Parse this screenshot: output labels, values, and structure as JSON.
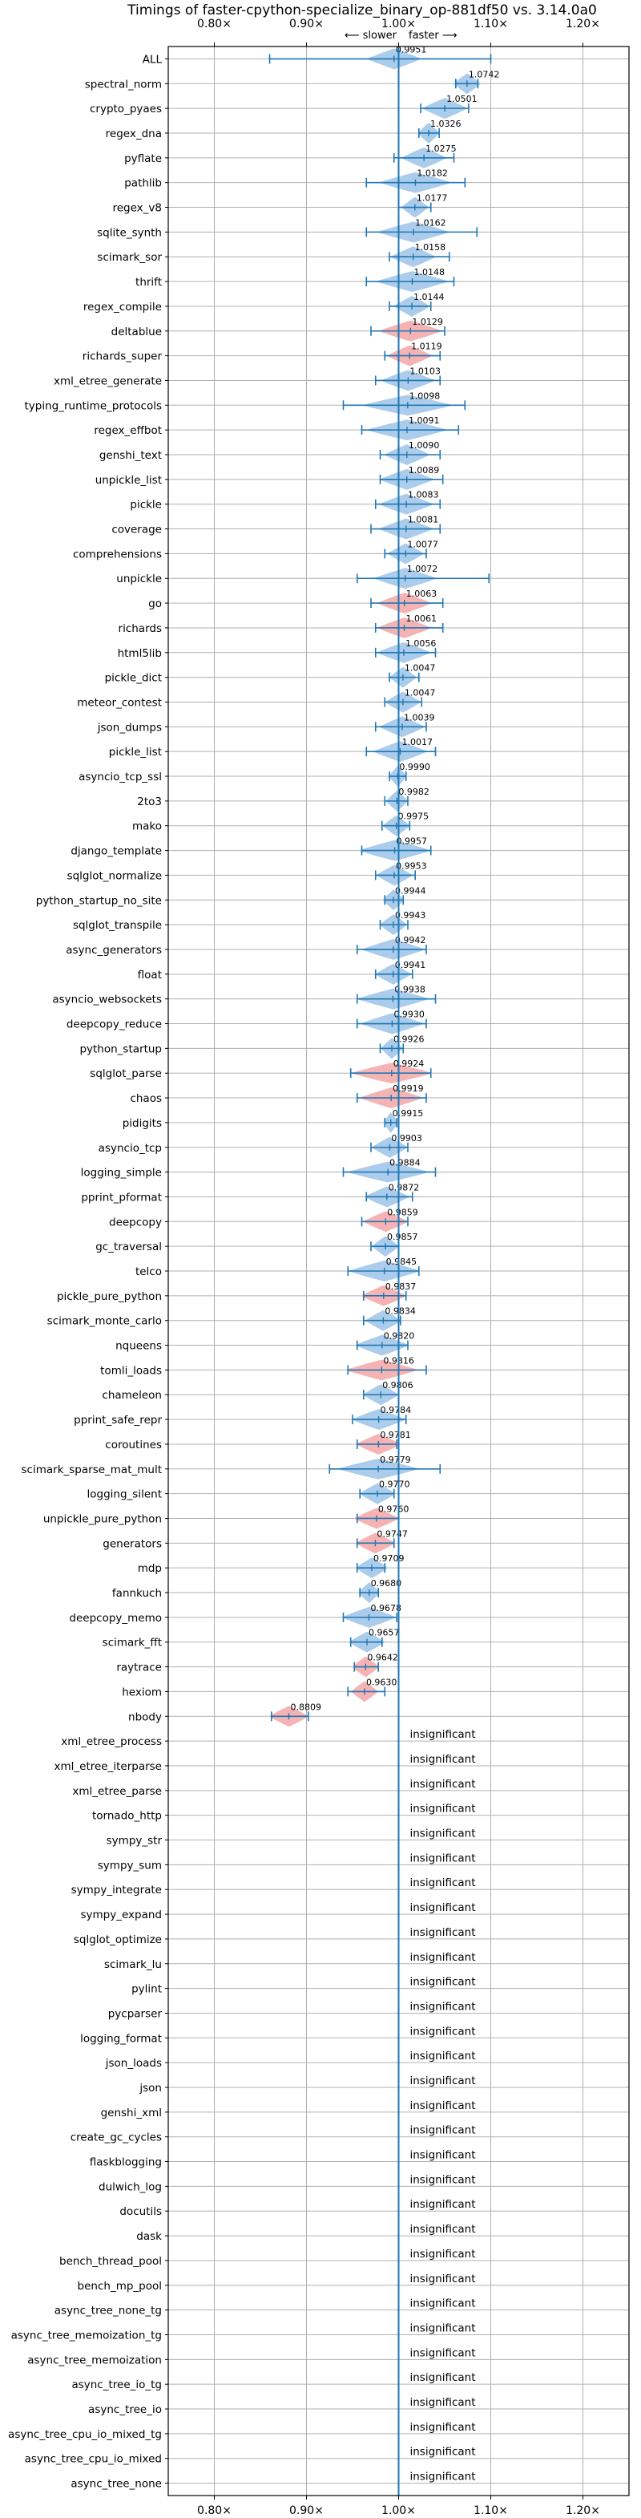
{
  "chart_data": {
    "type": "violin",
    "title": "Timings of faster-cpython-specialize_binary_op-881df50 vs. 3.14.0a0",
    "direction_labels": {
      "slower": "⟵ slower",
      "faster": "faster ⟶"
    },
    "xlim": [
      0.75,
      1.25
    ],
    "x_ticks": [
      0.8,
      0.9,
      1.0,
      1.1,
      1.2
    ],
    "x_tick_labels": [
      "0.80×",
      "0.90×",
      "1.00×",
      "1.10×",
      "1.20×"
    ],
    "reference_line": 1.0,
    "insignificant_label": "insignificant",
    "colors": {
      "faster": "#9cc3e6",
      "slower": "#f4a6a6",
      "errorbar": "#1f77b4",
      "reference": "#1f77b4"
    },
    "benchmarks": [
      {
        "name": "ALL",
        "value": 0.9951,
        "value_label": "0.9951",
        "err": [
          0.86,
          1.1
        ],
        "width": 0.03,
        "status": "faster"
      },
      {
        "name": "spectral_norm",
        "value": 1.0742,
        "value_label": "1.0742",
        "err": [
          1.062,
          1.086
        ],
        "width": 0.015,
        "status": "faster"
      },
      {
        "name": "crypto_pyaes",
        "value": 1.0501,
        "value_label": "1.0501",
        "err": [
          1.024,
          1.076
        ],
        "width": 0.025,
        "status": "faster"
      },
      {
        "name": "regex_dna",
        "value": 1.0326,
        "value_label": "1.0326",
        "err": [
          1.022,
          1.044
        ],
        "width": 0.012,
        "status": "faster"
      },
      {
        "name": "pyflate",
        "value": 1.0275,
        "value_label": "1.0275",
        "err": [
          0.995,
          1.06
        ],
        "width": 0.025,
        "status": "faster"
      },
      {
        "name": "pathlib",
        "value": 1.0182,
        "value_label": "1.0182",
        "err": [
          0.965,
          1.072
        ],
        "width": 0.04,
        "status": "faster"
      },
      {
        "name": "regex_v8",
        "value": 1.0177,
        "value_label": "1.0177",
        "err": [
          1.0,
          1.035
        ],
        "width": 0.015,
        "status": "faster"
      },
      {
        "name": "sqlite_synth",
        "value": 1.0162,
        "value_label": "1.0162",
        "err": [
          0.965,
          1.085
        ],
        "width": 0.04,
        "status": "faster"
      },
      {
        "name": "scimark_sor",
        "value": 1.0158,
        "value_label": "1.0158",
        "err": [
          0.99,
          1.055
        ],
        "width": 0.025,
        "status": "faster"
      },
      {
        "name": "thrift",
        "value": 1.0148,
        "value_label": "1.0148",
        "err": [
          0.965,
          1.06
        ],
        "width": 0.04,
        "status": "faster"
      },
      {
        "name": "regex_compile",
        "value": 1.0144,
        "value_label": "1.0144",
        "err": [
          0.99,
          1.035
        ],
        "width": 0.02,
        "status": "faster"
      },
      {
        "name": "deltablue",
        "value": 1.0129,
        "value_label": "1.0129",
        "err": [
          0.97,
          1.05
        ],
        "width": 0.035,
        "status": "slower"
      },
      {
        "name": "richards_super",
        "value": 1.0119,
        "value_label": "1.0119",
        "err": [
          0.985,
          1.045
        ],
        "width": 0.025,
        "status": "slower"
      },
      {
        "name": "xml_etree_generate",
        "value": 1.0103,
        "value_label": "1.0103",
        "err": [
          0.975,
          1.045
        ],
        "width": 0.03,
        "status": "faster"
      },
      {
        "name": "typing_runtime_protocols",
        "value": 1.0098,
        "value_label": "1.0098",
        "err": [
          0.94,
          1.072
        ],
        "width": 0.05,
        "status": "faster"
      },
      {
        "name": "regex_effbot",
        "value": 1.0091,
        "value_label": "1.0091",
        "err": [
          0.96,
          1.065
        ],
        "width": 0.045,
        "status": "faster"
      },
      {
        "name": "genshi_text",
        "value": 1.009,
        "value_label": "1.0090",
        "err": [
          0.98,
          1.045
        ],
        "width": 0.025,
        "status": "faster"
      },
      {
        "name": "unpickle_list",
        "value": 1.0089,
        "value_label": "1.0089",
        "err": [
          0.98,
          1.048
        ],
        "width": 0.03,
        "status": "faster"
      },
      {
        "name": "pickle",
        "value": 1.0083,
        "value_label": "1.0083",
        "err": [
          0.975,
          1.045
        ],
        "width": 0.03,
        "status": "faster"
      },
      {
        "name": "coverage",
        "value": 1.0081,
        "value_label": "1.0081",
        "err": [
          0.97,
          1.045
        ],
        "width": 0.03,
        "status": "faster"
      },
      {
        "name": "comprehensions",
        "value": 1.0077,
        "value_label": "1.0077",
        "err": [
          0.985,
          1.03
        ],
        "width": 0.02,
        "status": "faster"
      },
      {
        "name": "unpickle",
        "value": 1.0072,
        "value_label": "1.0072",
        "err": [
          0.955,
          1.098
        ],
        "width": 0.035,
        "status": "faster"
      },
      {
        "name": "go",
        "value": 1.0063,
        "value_label": "1.0063",
        "err": [
          0.97,
          1.048
        ],
        "width": 0.03,
        "status": "slower"
      },
      {
        "name": "richards",
        "value": 1.0061,
        "value_label": "1.0061",
        "err": [
          0.975,
          1.048
        ],
        "width": 0.03,
        "status": "slower"
      },
      {
        "name": "html5lib",
        "value": 1.0056,
        "value_label": "1.0056",
        "err": [
          0.975,
          1.04
        ],
        "width": 0.03,
        "status": "faster"
      },
      {
        "name": "pickle_dict",
        "value": 1.0047,
        "value_label": "1.0047",
        "err": [
          0.99,
          1.022
        ],
        "width": 0.015,
        "status": "faster"
      },
      {
        "name": "meteor_contest",
        "value": 1.0047,
        "value_label": "1.0047",
        "err": [
          0.985,
          1.025
        ],
        "width": 0.02,
        "status": "faster"
      },
      {
        "name": "json_dumps",
        "value": 1.0039,
        "value_label": "1.0039",
        "err": [
          0.975,
          1.03
        ],
        "width": 0.025,
        "status": "faster"
      },
      {
        "name": "pickle_list",
        "value": 1.0017,
        "value_label": "1.0017",
        "err": [
          0.965,
          1.04
        ],
        "width": 0.03,
        "status": "faster"
      },
      {
        "name": "asyncio_tcp_ssl",
        "value": 0.999,
        "value_label": "0.9990",
        "err": [
          0.99,
          1.008
        ],
        "width": 0.01,
        "status": "faster"
      },
      {
        "name": "2to3",
        "value": 0.9982,
        "value_label": "0.9982",
        "err": [
          0.985,
          1.01
        ],
        "width": 0.012,
        "status": "faster"
      },
      {
        "name": "mako",
        "value": 0.9975,
        "value_label": "0.9975",
        "err": [
          0.982,
          1.012
        ],
        "width": 0.015,
        "status": "faster"
      },
      {
        "name": "django_template",
        "value": 0.9957,
        "value_label": "0.9957",
        "err": [
          0.96,
          1.035
        ],
        "width": 0.04,
        "status": "faster"
      },
      {
        "name": "sqlglot_normalize",
        "value": 0.9953,
        "value_label": "0.9953",
        "err": [
          0.975,
          1.018
        ],
        "width": 0.02,
        "status": "faster"
      },
      {
        "name": "python_startup_no_site",
        "value": 0.9944,
        "value_label": "0.9944",
        "err": [
          0.985,
          1.005
        ],
        "width": 0.012,
        "status": "faster"
      },
      {
        "name": "sqlglot_transpile",
        "value": 0.9943,
        "value_label": "0.9943",
        "err": [
          0.98,
          1.01
        ],
        "width": 0.015,
        "status": "faster"
      },
      {
        "name": "async_generators",
        "value": 0.9942,
        "value_label": "0.9942",
        "err": [
          0.955,
          1.03
        ],
        "width": 0.035,
        "status": "faster"
      },
      {
        "name": "float",
        "value": 0.9941,
        "value_label": "0.9941",
        "err": [
          0.975,
          1.015
        ],
        "width": 0.02,
        "status": "faster"
      },
      {
        "name": "asyncio_websockets",
        "value": 0.9938,
        "value_label": "0.9938",
        "err": [
          0.955,
          1.04
        ],
        "width": 0.04,
        "status": "faster"
      },
      {
        "name": "deepcopy_reduce",
        "value": 0.993,
        "value_label": "0.9930",
        "err": [
          0.955,
          1.03
        ],
        "width": 0.035,
        "status": "faster"
      },
      {
        "name": "python_startup",
        "value": 0.9926,
        "value_label": "0.9926",
        "err": [
          0.98,
          1.005
        ],
        "width": 0.012,
        "status": "faster"
      },
      {
        "name": "sqlglot_parse",
        "value": 0.9924,
        "value_label": "0.9924",
        "err": [
          0.948,
          1.035
        ],
        "width": 0.045,
        "status": "slower"
      },
      {
        "name": "chaos",
        "value": 0.9919,
        "value_label": "0.9919",
        "err": [
          0.955,
          1.03
        ],
        "width": 0.035,
        "status": "slower"
      },
      {
        "name": "pidigits",
        "value": 0.9915,
        "value_label": "0.9915",
        "err": [
          0.985,
          0.998
        ],
        "width": 0.008,
        "status": "faster"
      },
      {
        "name": "asyncio_tcp",
        "value": 0.9903,
        "value_label": "0.9903",
        "err": [
          0.97,
          1.01
        ],
        "width": 0.02,
        "status": "faster"
      },
      {
        "name": "logging_simple",
        "value": 0.9884,
        "value_label": "0.9884",
        "err": [
          0.94,
          1.04
        ],
        "width": 0.045,
        "status": "faster"
      },
      {
        "name": "pprint_pformat",
        "value": 0.9872,
        "value_label": "0.9872",
        "err": [
          0.965,
          1.015
        ],
        "width": 0.025,
        "status": "faster"
      },
      {
        "name": "deepcopy",
        "value": 0.9859,
        "value_label": "0.9859",
        "err": [
          0.96,
          1.01
        ],
        "width": 0.025,
        "status": "slower"
      },
      {
        "name": "gc_traversal",
        "value": 0.9857,
        "value_label": "0.9857",
        "err": [
          0.97,
          1.0
        ],
        "width": 0.015,
        "status": "faster"
      },
      {
        "name": "telco",
        "value": 0.9845,
        "value_label": "0.9845",
        "err": [
          0.945,
          1.022
        ],
        "width": 0.04,
        "status": "faster"
      },
      {
        "name": "pickle_pure_python",
        "value": 0.9837,
        "value_label": "0.9837",
        "err": [
          0.962,
          1.008
        ],
        "width": 0.025,
        "status": "slower"
      },
      {
        "name": "scimark_monte_carlo",
        "value": 0.9834,
        "value_label": "0.9834",
        "err": [
          0.962,
          1.002
        ],
        "width": 0.02,
        "status": "faster"
      },
      {
        "name": "nqueens",
        "value": 0.982,
        "value_label": "0.9820",
        "err": [
          0.955,
          1.01
        ],
        "width": 0.03,
        "status": "faster"
      },
      {
        "name": "tomli_loads",
        "value": 0.9816,
        "value_label": "0.9816",
        "err": [
          0.945,
          1.03
        ],
        "width": 0.04,
        "status": "slower"
      },
      {
        "name": "chameleon",
        "value": 0.9806,
        "value_label": "0.9806",
        "err": [
          0.962,
          1.0
        ],
        "width": 0.02,
        "status": "faster"
      },
      {
        "name": "pprint_safe_repr",
        "value": 0.9784,
        "value_label": "0.9784",
        "err": [
          0.95,
          1.008
        ],
        "width": 0.03,
        "status": "faster"
      },
      {
        "name": "coroutines",
        "value": 0.9781,
        "value_label": "0.9781",
        "err": [
          0.955,
          0.998
        ],
        "width": 0.025,
        "status": "slower"
      },
      {
        "name": "scimark_sparse_mat_mult",
        "value": 0.9779,
        "value_label": "0.9779",
        "err": [
          0.925,
          1.045
        ],
        "width": 0.045,
        "status": "faster"
      },
      {
        "name": "logging_silent",
        "value": 0.977,
        "value_label": "0.9770",
        "err": [
          0.958,
          0.995
        ],
        "width": 0.02,
        "status": "faster"
      },
      {
        "name": "unpickle_pure_python",
        "value": 0.976,
        "value_label": "0.9760",
        "err": [
          0.955,
          1.0
        ],
        "width": 0.025,
        "status": "slower"
      },
      {
        "name": "generators",
        "value": 0.9747,
        "value_label": "0.9747",
        "err": [
          0.955,
          0.995
        ],
        "width": 0.022,
        "status": "slower"
      },
      {
        "name": "mdp",
        "value": 0.9709,
        "value_label": "0.9709",
        "err": [
          0.955,
          0.985
        ],
        "width": 0.018,
        "status": "faster"
      },
      {
        "name": "fannkuch",
        "value": 0.968,
        "value_label": "0.9680",
        "err": [
          0.958,
          0.978
        ],
        "width": 0.012,
        "status": "faster"
      },
      {
        "name": "deepcopy_memo",
        "value": 0.9678,
        "value_label": "0.9678",
        "err": [
          0.94,
          0.998
        ],
        "width": 0.03,
        "status": "faster"
      },
      {
        "name": "scimark_fft",
        "value": 0.9657,
        "value_label": "0.9657",
        "err": [
          0.948,
          0.982
        ],
        "width": 0.02,
        "status": "faster"
      },
      {
        "name": "raytrace",
        "value": 0.9642,
        "value_label": "0.9642",
        "err": [
          0.952,
          0.978
        ],
        "width": 0.015,
        "status": "slower"
      },
      {
        "name": "hexiom",
        "value": 0.963,
        "value_label": "0.9630",
        "err": [
          0.945,
          0.985
        ],
        "width": 0.015,
        "status": "slower"
      },
      {
        "name": "nbody",
        "value": 0.8809,
        "value_label": "0.8809",
        "err": [
          0.862,
          0.902
        ],
        "width": 0.022,
        "status": "slower"
      },
      {
        "name": "xml_etree_process",
        "status": "insignificant"
      },
      {
        "name": "xml_etree_iterparse",
        "status": "insignificant"
      },
      {
        "name": "xml_etree_parse",
        "status": "insignificant"
      },
      {
        "name": "tornado_http",
        "status": "insignificant"
      },
      {
        "name": "sympy_str",
        "status": "insignificant"
      },
      {
        "name": "sympy_sum",
        "status": "insignificant"
      },
      {
        "name": "sympy_integrate",
        "status": "insignificant"
      },
      {
        "name": "sympy_expand",
        "status": "insignificant"
      },
      {
        "name": "sqlglot_optimize",
        "status": "insignificant"
      },
      {
        "name": "scimark_lu",
        "status": "insignificant"
      },
      {
        "name": "pylint",
        "status": "insignificant"
      },
      {
        "name": "pycparser",
        "status": "insignificant"
      },
      {
        "name": "logging_format",
        "status": "insignificant"
      },
      {
        "name": "json_loads",
        "status": "insignificant"
      },
      {
        "name": "json",
        "status": "insignificant"
      },
      {
        "name": "genshi_xml",
        "status": "insignificant"
      },
      {
        "name": "create_gc_cycles",
        "status": "insignificant"
      },
      {
        "name": "flaskblogging",
        "status": "insignificant"
      },
      {
        "name": "dulwich_log",
        "status": "insignificant"
      },
      {
        "name": "docutils",
        "status": "insignificant"
      },
      {
        "name": "dask",
        "status": "insignificant"
      },
      {
        "name": "bench_thread_pool",
        "status": "insignificant"
      },
      {
        "name": "bench_mp_pool",
        "status": "insignificant"
      },
      {
        "name": "async_tree_none_tg",
        "status": "insignificant"
      },
      {
        "name": "async_tree_memoization_tg",
        "status": "insignificant"
      },
      {
        "name": "async_tree_memoization",
        "status": "insignificant"
      },
      {
        "name": "async_tree_io_tg",
        "status": "insignificant"
      },
      {
        "name": "async_tree_io",
        "status": "insignificant"
      },
      {
        "name": "async_tree_cpu_io_mixed_tg",
        "status": "insignificant"
      },
      {
        "name": "async_tree_cpu_io_mixed",
        "status": "insignificant"
      },
      {
        "name": "async_tree_none",
        "status": "insignificant"
      }
    ]
  }
}
